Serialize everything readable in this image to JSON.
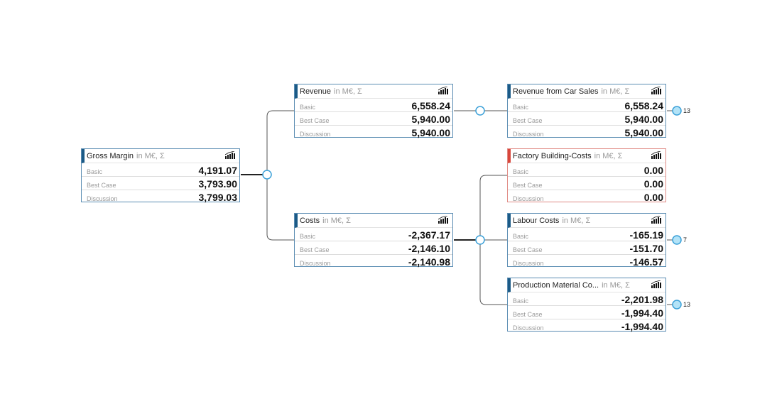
{
  "unit_suffix": "in M€, Σ",
  "row_labels": [
    "Basic",
    "Best Case",
    "Discussion"
  ],
  "nodes": [
    {
      "id": "gross-margin",
      "title": "Gross Margin",
      "values": [
        "4,191.07",
        "3,793.90",
        "3,799.03"
      ],
      "status": "normal"
    },
    {
      "id": "revenue",
      "title": "Revenue",
      "values": [
        "6,558.24",
        "5,940.00",
        "5,940.00"
      ],
      "status": "normal"
    },
    {
      "id": "costs",
      "title": "Costs",
      "values": [
        "-2,367.17",
        "-2,146.10",
        "-2,140.98"
      ],
      "status": "normal"
    },
    {
      "id": "revenue-car-sales",
      "title": "Revenue from Car Sales",
      "values": [
        "6,558.24",
        "5,940.00",
        "5,940.00"
      ],
      "status": "normal",
      "children_count": "13"
    },
    {
      "id": "factory-building-costs",
      "title": "Factory Building-Costs",
      "values": [
        "0.00",
        "0.00",
        "0.00"
      ],
      "status": "warning"
    },
    {
      "id": "labour-costs",
      "title": "Labour Costs",
      "values": [
        "-165.19",
        "-151.70",
        "-146.57"
      ],
      "status": "normal",
      "children_count": "7"
    },
    {
      "id": "production-material",
      "title": "Production Material Co...",
      "values": [
        "-2,201.98",
        "-1,994.40",
        "-1,994.40"
      ],
      "status": "normal",
      "children_count": "13"
    }
  ],
  "colors": {
    "accent": "#1b5a86",
    "warning": "#d9463b",
    "border": "#5b8db3",
    "expand": "#b3e3f7",
    "connector": "#444"
  }
}
